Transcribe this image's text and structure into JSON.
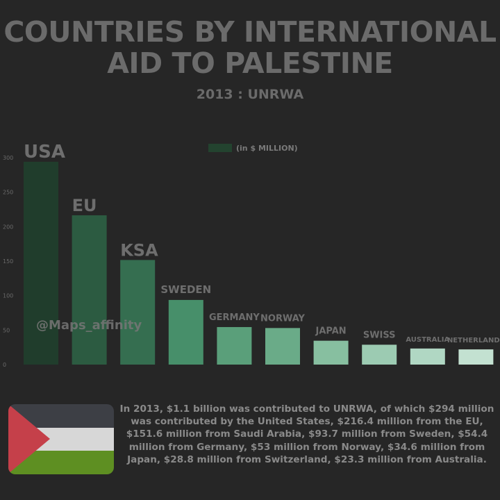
{
  "title_line1": "COUNTRIES BY INTERNATIONAL",
  "title_line2": "AID TO PALESTINE",
  "subtitle": "2013 : UNRWA",
  "watermark": "@Maps_affinity",
  "description": "In 2013, $1.1 billion was contributed to UNRWA, of which $294 million was contributed by the United States, $216.4 million from the EU, $151.6 million from Saudi Arabia, $93.7 million from Sweden, $54.4 million from Germany, $53 million from Norway, $34.6 million from Japan, $28.8 million from Switzerland, $23.3 million from Australia.",
  "flag_icon": "palestine-flag-icon",
  "chart_data": {
    "type": "bar",
    "title": "COUNTRIES BY INTERNATIONAL AID TO PALESTINE",
    "subtitle": "2013 : UNRWA",
    "categories": [
      "USA",
      "EU",
      "KSA",
      "SWEDEN",
      "GERMANY",
      "NORWAY",
      "JAPAN",
      "SWISS",
      "AUSTRALIA",
      "NETHERLANDS"
    ],
    "values": [
      294,
      216.4,
      151.6,
      93.7,
      54.4,
      53,
      34.6,
      28.8,
      23.3,
      22
    ],
    "colors": [
      "#203d2c",
      "#2c5b41",
      "#356e50",
      "#478f6a",
      "#5a9f7a",
      "#6aab88",
      "#87bfa0",
      "#9ccbb2",
      "#b0d7c3",
      "#c3e1d1"
    ],
    "legend": {
      "label": "(in $ MILLION)",
      "color": "#23432f",
      "position": "top-center"
    },
    "yticks": [
      0,
      50,
      100,
      150,
      200,
      250,
      300
    ],
    "ylim": [
      0,
      300
    ],
    "xlabel": "",
    "ylabel": "",
    "grid": false
  }
}
